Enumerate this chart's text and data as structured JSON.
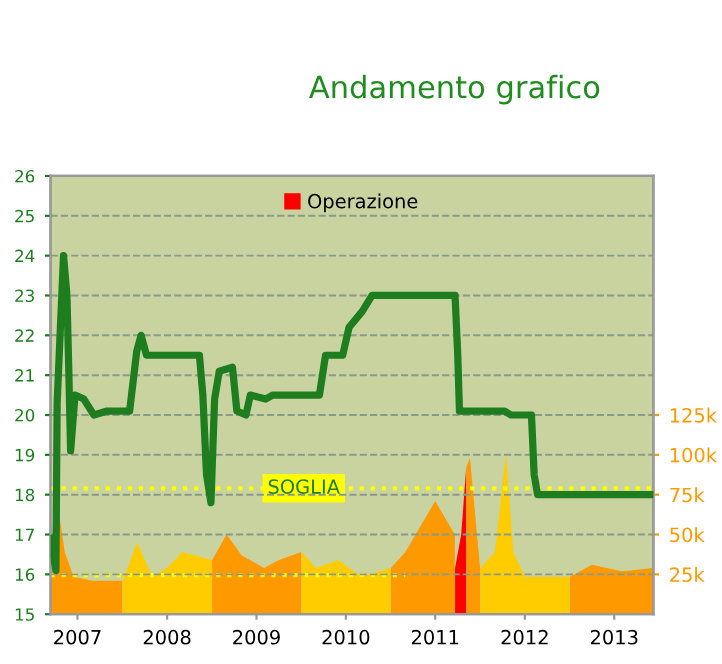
{
  "chart_data": {
    "type": "line",
    "title": "Andamento grafico",
    "xlim": [
      "2007-03-13",
      "2013-12-08"
    ],
    "xticks": [
      {
        "value": "2007-07-01",
        "label": "2007"
      },
      {
        "value": "2008-07-01",
        "label": "2008"
      },
      {
        "value": "2009-07-01",
        "label": "2009"
      },
      {
        "value": "2010-07-01",
        "label": "2010"
      },
      {
        "value": "2011-07-01",
        "label": "2011"
      },
      {
        "value": "2012-07-01",
        "label": "2012"
      },
      {
        "value": "2013-07-01",
        "label": "2013"
      }
    ],
    "ylim": [
      15,
      26
    ],
    "yticks": [
      15,
      16,
      17,
      18,
      19,
      20,
      21,
      22,
      23,
      24,
      25,
      26
    ],
    "y2lim": [
      0,
      275000
    ],
    "y2ticks": [
      {
        "value": 25000,
        "label": "25k"
      },
      {
        "value": 50000,
        "label": "50k"
      },
      {
        "value": 75000,
        "label": "75k"
      },
      {
        "value": 100000,
        "label": "100k"
      },
      {
        "value": 125000,
        "label": "125k"
      }
    ],
    "grid": "y",
    "legend": "top",
    "ref_lines": [
      {
        "axis": "y2",
        "value": 79000,
        "label": "SOGLIA",
        "color": "#ffff00",
        "line_style": "dotted"
      }
    ],
    "series": [
      {
        "type": "area",
        "axis": "y2",
        "color": "#ff9900",
        "x": [
          "2007-03-13",
          "2007-04-10",
          "2007-05-10",
          "2007-06-15",
          "2007-09-01",
          "2007-12-31"
        ],
        "values": [
          18000,
          71000,
          39000,
          23500,
          21000,
          21000
        ]
      },
      {
        "type": "area",
        "axis": "y2",
        "color": "#ffcc00",
        "x": [
          "2008-01-01",
          "2008-03-01",
          "2008-05-01",
          "2008-07-01",
          "2008-09-01",
          "2008-12-31"
        ],
        "values": [
          21000,
          45000,
          23500,
          29000,
          39000,
          34000
        ]
      },
      {
        "type": "area",
        "axis": "y2",
        "color": "#ff9900",
        "x": [
          "2009-01-01",
          "2009-03-01",
          "2009-05-01",
          "2009-08-01",
          "2009-10-01",
          "2009-12-31"
        ],
        "values": [
          34000,
          50000,
          37000,
          29000,
          34000,
          39000
        ]
      },
      {
        "type": "area",
        "axis": "y2",
        "color": "#ffcc00",
        "x": [
          "2010-01-01",
          "2010-03-01",
          "2010-06-01",
          "2010-09-01",
          "2010-12-31"
        ],
        "values": [
          39000,
          29000,
          34000,
          23500,
          29000
        ]
      },
      {
        "type": "area",
        "axis": "y2",
        "color": "#ff9900",
        "x": [
          "2011-01-01",
          "2011-03-01",
          "2011-05-01",
          "2011-07-01",
          "2011-09-19"
        ],
        "values": [
          29000,
          39000,
          55000,
          71000,
          50000
        ]
      },
      {
        "type": "area",
        "axis": "y2",
        "color": "#ff0000",
        "name": "Operazione",
        "x": [
          "2011-09-20",
          "2011-10-15",
          "2011-11-05"
        ],
        "values": [
          29000,
          50000,
          93000
        ]
      },
      {
        "type": "area",
        "axis": "y2",
        "color": "#ff9900",
        "x": [
          "2011-11-06",
          "2011-11-20",
          "2011-12-31"
        ],
        "values": [
          93000,
          98000,
          29000
        ]
      },
      {
        "type": "area",
        "axis": "y2",
        "color": "#ffcc00",
        "x": [
          "2012-01-01",
          "2012-03-01",
          "2012-04-15",
          "2012-05-15",
          "2012-07-01",
          "2012-12-31"
        ],
        "values": [
          29000,
          39000,
          101000,
          39000,
          23500,
          23500
        ]
      },
      {
        "type": "area",
        "axis": "y2",
        "color": "#ff9900",
        "x": [
          "2013-01-01",
          "2013-04-01",
          "2013-08-01",
          "2013-12-08"
        ],
        "values": [
          23500,
          31000,
          27000,
          29000
        ]
      },
      {
        "type": "line",
        "axis": "y2",
        "color": "#ffff00",
        "line_style": "dotted",
        "x": [
          "2007-03-13",
          "2011-03-01"
        ],
        "values": [
          24500,
          24500
        ]
      },
      {
        "color": "#1e7d1e",
        "line_style": "solid",
        "x": [
          "2007-03-13",
          "2007-04-04",
          "2007-04-09",
          "2007-04-23",
          "2007-05-05",
          "2007-05-19",
          "2007-05-27",
          "2007-06-03",
          "2007-06-21",
          "2007-07-27",
          "2007-09-06",
          "2007-10-30",
          "2008-01-30",
          "2008-02-28",
          "2008-03-17",
          "2008-04-08",
          "2008-11-10",
          "2008-11-24",
          "2008-12-09",
          "2008-12-27",
          "2009-01-11",
          "2009-01-30",
          "2009-03-25",
          "2009-04-12",
          "2009-05-19",
          "2009-06-06",
          "2009-08-07",
          "2009-09-05",
          "2010-03-15",
          "2010-04-09",
          "2010-06-18",
          "2010-07-14",
          "2010-09-06",
          "2010-10-16",
          "2011-09-20",
          "2011-10-01",
          "2011-10-08",
          "2012-04-09",
          "2012-05-05",
          "2012-07-28",
          "2012-08-08",
          "2012-08-22",
          "2013-12-08"
        ],
        "values": [
          16.9,
          16.1,
          20.3,
          22.3,
          24.0,
          23.0,
          21.0,
          19.1,
          20.5,
          20.4,
          20.0,
          20.1,
          20.1,
          21.6,
          22.0,
          21.5,
          21.5,
          20.5,
          18.5,
          17.8,
          20.4,
          21.1,
          21.2,
          20.1,
          20.0,
          20.5,
          20.4,
          20.5,
          20.5,
          21.5,
          21.5,
          22.2,
          22.6,
          23.0,
          23.0,
          21.5,
          20.1,
          20.1,
          20.0,
          20.0,
          18.5,
          18.0,
          18.0
        ]
      }
    ]
  }
}
